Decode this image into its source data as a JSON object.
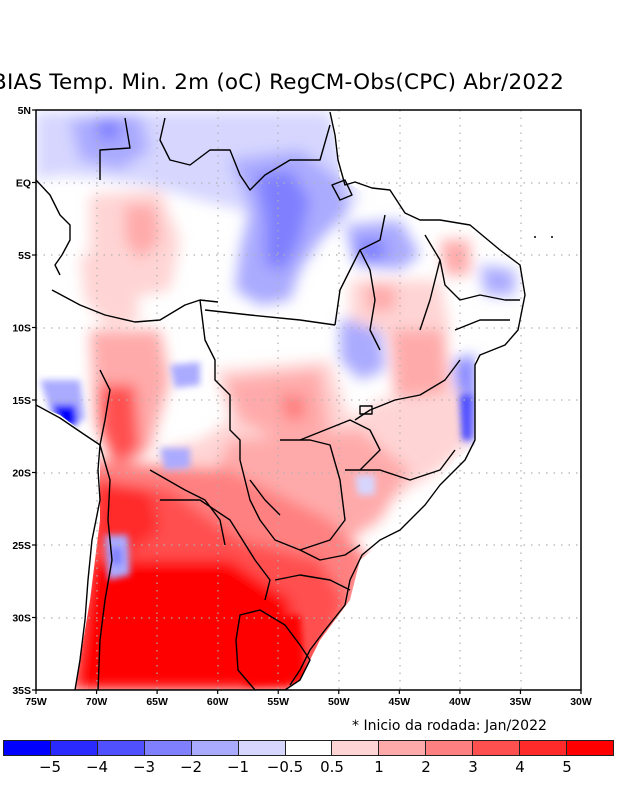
{
  "title": "BIAS Temp. Min. 2m (oC) RegCM-Obs(CPC) Abr/2022",
  "run_note": "* Inicio da rodada: Jan/2022",
  "map": {
    "lon_range": [
      -75,
      -30
    ],
    "lat_range": [
      -35,
      5
    ],
    "x_ticks": [
      "75W",
      "70W",
      "65W",
      "60W",
      "55W",
      "50W",
      "45W",
      "40W",
      "35W",
      "30W"
    ],
    "y_ticks": [
      "5N",
      "EQ",
      "5S",
      "10S",
      "15S",
      "20S",
      "25S",
      "30S",
      "35S"
    ],
    "grid": "dotted"
  },
  "colorbar": {
    "colors": [
      "#0000ff",
      "#2a2aff",
      "#5050ff",
      "#8080ff",
      "#aaaaff",
      "#d6d6ff",
      "#ffffff",
      "#ffd4d4",
      "#ffaaaa",
      "#ff8080",
      "#ff5050",
      "#ff2a2a",
      "#ff0000"
    ],
    "labels": [
      "-5",
      "-4",
      "-3",
      "-2",
      "-1",
      "-0.5",
      "0.5",
      "1",
      "2",
      "3",
      "4",
      "5"
    ]
  }
}
